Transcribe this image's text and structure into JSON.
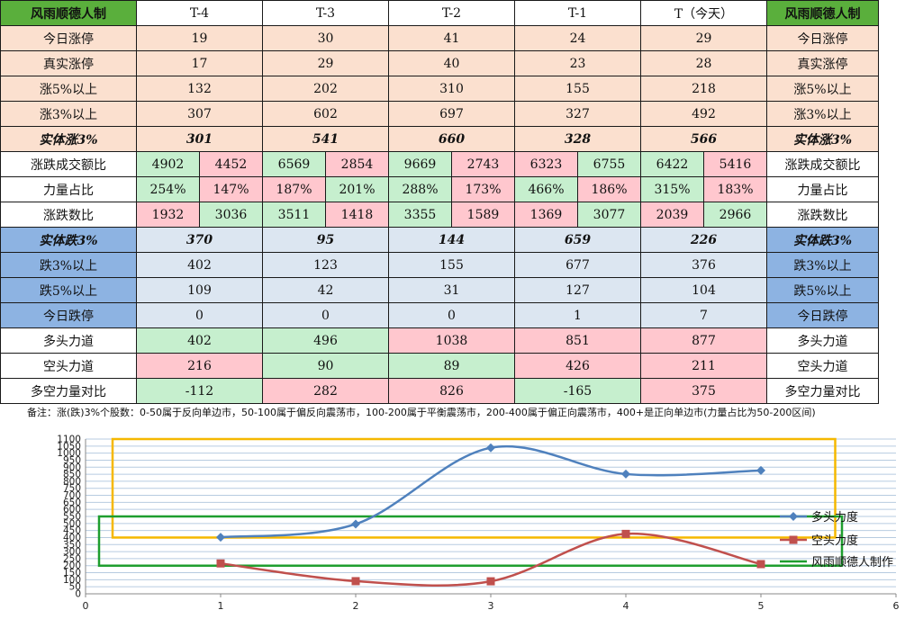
{
  "table": {
    "header": {
      "label_left": "风雨顺德人制",
      "columns": [
        "T-4",
        "T-3",
        "T-2",
        "T-1",
        "T（今天）"
      ],
      "label_right": "风雨顺德人制"
    },
    "rows_up": [
      {
        "label": "今日涨停",
        "values": [
          "19",
          "30",
          "41",
          "24",
          "29"
        ]
      },
      {
        "label": "真实涨停",
        "values": [
          "17",
          "29",
          "40",
          "23",
          "28"
        ]
      },
      {
        "label": "涨5%以上",
        "values": [
          "132",
          "202",
          "310",
          "155",
          "218"
        ]
      },
      {
        "label": "涨3%以上",
        "values": [
          "307",
          "602",
          "697",
          "327",
          "492"
        ]
      }
    ],
    "solid_up": {
      "label": "实体涨3%",
      "values": [
        "301",
        "541",
        "660",
        "328",
        "566"
      ]
    },
    "turnover": {
      "label": "涨跌成交额比",
      "values": [
        [
          "4902",
          "4452"
        ],
        [
          "6569",
          "2854"
        ],
        [
          "9669",
          "2743"
        ],
        [
          "6323",
          "6755"
        ],
        [
          "6422",
          "5416"
        ]
      ]
    },
    "power": {
      "label": "力量占比",
      "values": [
        [
          "254%",
          "147%"
        ],
        [
          "187%",
          "201%"
        ],
        [
          "288%",
          "173%"
        ],
        [
          "466%",
          "186%"
        ],
        [
          "315%",
          "183%"
        ]
      ]
    },
    "counts": {
      "label": "涨跌数比",
      "values": [
        [
          "1932",
          "3036"
        ],
        [
          "3511",
          "1418"
        ],
        [
          "3355",
          "1589"
        ],
        [
          "1369",
          "3077"
        ],
        [
          "2039",
          "2966"
        ]
      ]
    },
    "solid_down": {
      "label": "实体跌3%",
      "values": [
        "370",
        "95",
        "144",
        "659",
        "226"
      ]
    },
    "rows_down": [
      {
        "label": "跌3%以上",
        "values": [
          "402",
          "123",
          "155",
          "677",
          "376"
        ]
      },
      {
        "label": "跌5%以上",
        "values": [
          "109",
          "42",
          "31",
          "127",
          "104"
        ]
      },
      {
        "label": "今日跌停",
        "values": [
          "0",
          "0",
          "0",
          "1",
          "7"
        ]
      }
    ],
    "force": [
      {
        "label": "多头力道",
        "values": [
          "402",
          "496",
          "1038",
          "851",
          "877"
        ]
      },
      {
        "label": "空头力道",
        "values": [
          "216",
          "90",
          "89",
          "426",
          "211"
        ]
      },
      {
        "label": "多空力量对比",
        "values": [
          "-112",
          "282",
          "826",
          "-165",
          "375"
        ]
      }
    ],
    "note": "备注：涨(跌)3%个股数：0-50属于反向单边市，50-100属于偏反向震荡市，100-200属于平衡震荡市，200-400属于偏正向震荡市，400+是正向单边市(力量占比为50-200区间)"
  },
  "colors": {
    "bull": "#4f81bd",
    "bear": "#c0504d",
    "yellow_box": "#f5b800",
    "green_box": "#1e9e2e",
    "gridline": "#b7cbe0"
  },
  "chart_data": {
    "type": "line",
    "x": [
      1,
      2,
      3,
      4,
      5
    ],
    "series": [
      {
        "name": "多头力度",
        "values": [
          402,
          496,
          1038,
          851,
          877
        ],
        "marker": "diamond",
        "color": "#4f81bd"
      },
      {
        "name": "空头力度",
        "values": [
          216,
          90,
          89,
          426,
          211
        ],
        "marker": "square",
        "color": "#c0504d"
      }
    ],
    "legend_extra": "风雨顺德人制作",
    "xlim": [
      0,
      6
    ],
    "ylim": [
      0,
      1100
    ],
    "xticks": [
      0,
      1,
      2,
      3,
      4,
      5,
      6
    ],
    "yticks": [
      0,
      50,
      100,
      150,
      200,
      250,
      300,
      350,
      400,
      450,
      500,
      550,
      600,
      650,
      700,
      750,
      800,
      850,
      900,
      950,
      1000,
      1050,
      1100
    ],
    "grid": true,
    "legend_position": "right"
  }
}
